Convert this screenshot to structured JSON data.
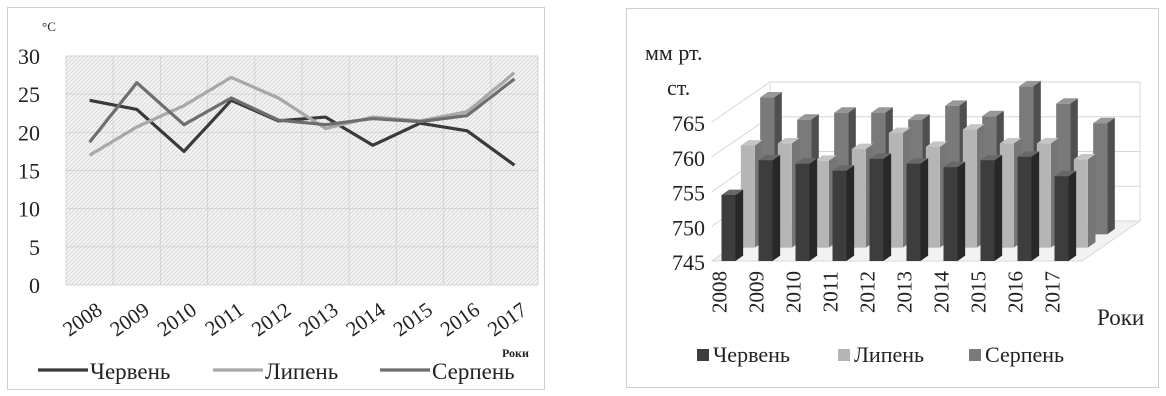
{
  "chart_data": [
    {
      "type": "line",
      "ylabel": "°C",
      "xlabel": "Роки",
      "ylim": [
        0,
        30
      ],
      "yticks": [
        "0",
        "5",
        "10",
        "15",
        "20",
        "25",
        "30"
      ],
      "categories": [
        "2008",
        "2009",
        "2010",
        "2011",
        "2012",
        "2013",
        "2014",
        "2015",
        "2016",
        "2017"
      ],
      "series": [
        {
          "name": "Червень",
          "color": "#3a3a3a",
          "values": [
            24.2,
            23,
            17.5,
            24.2,
            21.5,
            22,
            18.3,
            21.2,
            20.2,
            15.7
          ]
        },
        {
          "name": "Липень",
          "color": "#a8a8a8",
          "values": [
            17,
            20.7,
            23.5,
            27.2,
            24.5,
            20.5,
            22,
            21.5,
            22.7,
            27.8
          ]
        },
        {
          "name": "Серпень",
          "color": "#6e6e6e",
          "values": [
            18.7,
            26.5,
            21,
            24.5,
            21.6,
            21,
            21.8,
            21.4,
            22.2,
            27
          ]
        }
      ],
      "grid": true,
      "legend_position": "bottom"
    },
    {
      "type": "bar",
      "ylabel": "мм рт. ст.",
      "xlabel": "Роки",
      "ylim": [
        745,
        765
      ],
      "yticks": [
        "745",
        "750",
        "755",
        "760",
        "765"
      ],
      "categories": [
        "2008",
        "2009",
        "2010",
        "2011",
        "2012",
        "2013",
        "2014",
        "2015",
        "2016",
        "2017"
      ],
      "series": [
        {
          "name": "Червень",
          "color": "#3d3d3d",
          "values": [
            754.5,
            759.5,
            759,
            758,
            759.7,
            759,
            758.5,
            759.5,
            760,
            757.2
          ]
        },
        {
          "name": "Липень",
          "color": "#b5b5b5",
          "values": [
            759.7,
            760,
            757.5,
            759.2,
            761.5,
            759.5,
            762,
            760,
            760,
            757.7
          ]
        },
        {
          "name": "Серпень",
          "color": "#7a7a7a",
          "values": [
            764.7,
            761.5,
            762.5,
            762.5,
            761.5,
            763.5,
            762,
            766.3,
            763.8,
            761
          ]
        }
      ],
      "grid": true,
      "legend_position": "bottom"
    }
  ]
}
